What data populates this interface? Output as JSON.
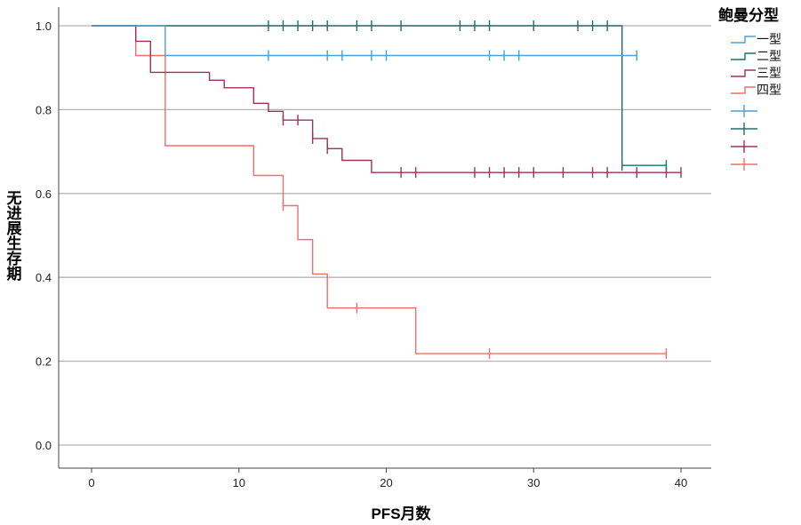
{
  "chart_data": {
    "type": "line",
    "subtype": "kaplan-meier",
    "xlabel": "PFS月数",
    "ylabel": "无进展生存期",
    "xlim": [
      -2.2,
      42
    ],
    "ylim": [
      -0.05,
      1.04
    ],
    "xticks": [
      0,
      10,
      20,
      30,
      40
    ],
    "yticks": [
      0.0,
      0.2,
      0.4,
      0.6,
      0.8,
      1.0
    ],
    "ytick_labels": [
      "0.0",
      "0.2",
      "0.4",
      "0.6",
      "0.8",
      "1.0"
    ],
    "grid": "horizontal",
    "legend_title": "鲍曼分型",
    "legend_position": "right",
    "series": [
      {
        "name": "一型",
        "color": "#4a9fd8",
        "end": 37,
        "steps": [
          [
            0,
            1.0
          ],
          [
            5,
            0.929
          ]
        ],
        "censored": [
          [
            12,
            0.929
          ],
          [
            16,
            0.929
          ],
          [
            17,
            0.929
          ],
          [
            19,
            0.929
          ],
          [
            20,
            0.929
          ],
          [
            27,
            0.929
          ],
          [
            28,
            0.929
          ],
          [
            29,
            0.929
          ],
          [
            37,
            0.929
          ]
        ]
      },
      {
        "name": "二型",
        "color": "#1f6e6e",
        "end": 39,
        "steps": [
          [
            0,
            1.0
          ],
          [
            36,
            0.667
          ]
        ],
        "censored": [
          [
            12,
            1
          ],
          [
            13,
            1
          ],
          [
            14,
            1
          ],
          [
            15,
            1
          ],
          [
            16,
            1
          ],
          [
            18,
            1
          ],
          [
            19,
            1
          ],
          [
            21,
            1
          ],
          [
            25,
            1
          ],
          [
            26,
            1
          ],
          [
            27,
            1
          ],
          [
            30,
            1
          ],
          [
            33,
            1
          ],
          [
            34,
            1
          ],
          [
            35,
            1
          ],
          [
            36,
            0.667
          ],
          [
            39,
            0.667
          ]
        ]
      },
      {
        "name": "三型",
        "color": "#a0305c",
        "end": 40,
        "steps": [
          [
            0,
            1.0
          ],
          [
            3,
            0.963
          ],
          [
            4,
            0.889
          ],
          [
            8,
            0.87
          ],
          [
            9,
            0.852
          ],
          [
            11,
            0.815
          ],
          [
            12,
            0.796
          ],
          [
            13,
            0.775
          ],
          [
            15,
            0.731
          ],
          [
            16,
            0.707
          ],
          [
            17,
            0.679
          ],
          [
            19,
            0.65
          ]
        ],
        "censored": [
          [
            13,
            0.775
          ],
          [
            14,
            0.775
          ],
          [
            15,
            0.731
          ],
          [
            16,
            0.707
          ],
          [
            21,
            0.65
          ],
          [
            22,
            0.65
          ],
          [
            26,
            0.65
          ],
          [
            27,
            0.65
          ],
          [
            28,
            0.65
          ],
          [
            29,
            0.65
          ],
          [
            30,
            0.65
          ],
          [
            32,
            0.65
          ],
          [
            34,
            0.65
          ],
          [
            35,
            0.65
          ],
          [
            37,
            0.65
          ],
          [
            39,
            0.65
          ],
          [
            40,
            0.65
          ]
        ]
      },
      {
        "name": "四型",
        "color": "#f06e6e",
        "end": 39,
        "steps": [
          [
            0,
            1.0
          ],
          [
            3,
            0.929
          ],
          [
            5,
            0.714
          ],
          [
            11,
            0.643
          ],
          [
            13,
            0.571
          ],
          [
            14,
            0.49
          ],
          [
            15,
            0.408
          ],
          [
            16,
            0.327
          ],
          [
            22,
            0.218
          ]
        ],
        "censored": [
          [
            13,
            0.571
          ],
          [
            18,
            0.327
          ],
          [
            27,
            0.218
          ],
          [
            39,
            0.218
          ]
        ]
      }
    ]
  }
}
